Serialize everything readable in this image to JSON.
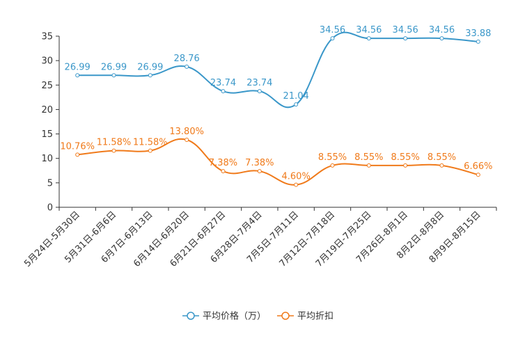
{
  "chart_data": {
    "type": "line",
    "categories": [
      "5月24日-5月30日",
      "5月31日-6月6日",
      "6月7日-6月13日",
      "6月14日-6月20日",
      "6月21日-6月27日",
      "6月28日-7月4日",
      "7月5日-7月11日",
      "7月12日-7月18日",
      "7月19日-7月25日",
      "7月26日-8月1日",
      "8月2日-8月8日",
      "8月9日-8月15日"
    ],
    "ylim": [
      0,
      35
    ],
    "yticks": [
      0,
      5,
      10,
      15,
      20,
      25,
      30,
      35
    ],
    "series": [
      {
        "name": "平均价格（万）",
        "color": "#3a97c9",
        "values": [
          26.99,
          26.99,
          26.99,
          28.76,
          23.74,
          23.74,
          21.04,
          34.56,
          34.56,
          34.56,
          34.56,
          33.88
        ],
        "labels": [
          "26.99",
          "26.99",
          "26.99",
          "28.76",
          "23.74",
          "23.74",
          "21.04",
          "34.56",
          "34.56",
          "34.56",
          "34.56",
          "33.88"
        ]
      },
      {
        "name": "平均折扣",
        "color": "#f07a1a",
        "values": [
          10.76,
          11.58,
          11.58,
          13.8,
          7.38,
          7.38,
          4.6,
          8.55,
          8.55,
          8.55,
          8.55,
          6.66
        ],
        "labels": [
          "10.76%",
          "11.58%",
          "11.58%",
          "13.80%",
          "7.38%",
          "7.38%",
          "4.60%",
          "8.55%",
          "8.55%",
          "8.55%",
          "8.55%",
          "6.66%"
        ]
      }
    ],
    "legend": "bottom-center",
    "grid": false
  }
}
